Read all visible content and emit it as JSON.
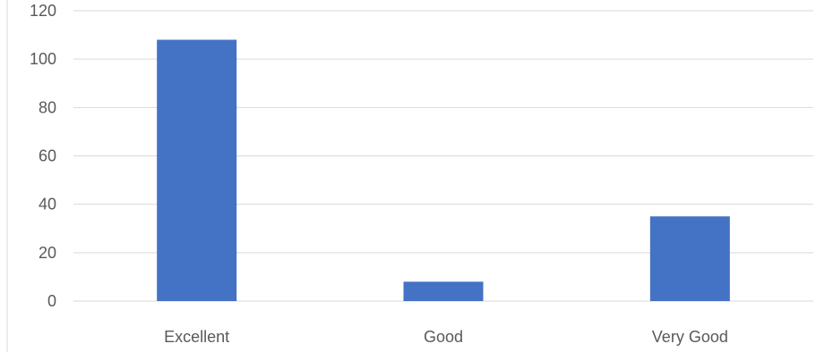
{
  "chart_data": {
    "type": "bar",
    "title": "",
    "xlabel": "",
    "ylabel": "",
    "categories": [
      "Excellent",
      "Good",
      "Very Good"
    ],
    "values": [
      108,
      8,
      35
    ],
    "ylim": [
      0,
      120
    ],
    "yticks": [
      "0",
      "20",
      "40",
      "60",
      "80",
      "100",
      "120"
    ],
    "grid": true,
    "legend": "none",
    "bar_color": "#4472c4"
  }
}
